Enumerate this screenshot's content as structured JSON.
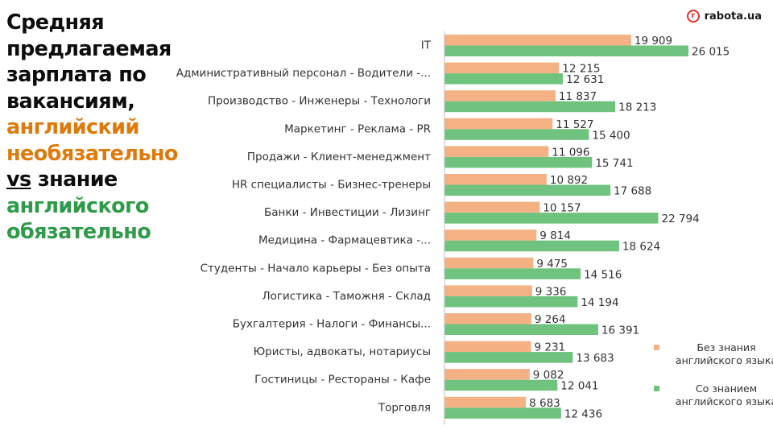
{
  "headline": {
    "line1": "Средняя",
    "line2": "предлагаемая",
    "line3": "зарплата по",
    "line4": "вакансиям,",
    "line5": "английский",
    "line6": "необязательно",
    "line7_prefix": "vs",
    "line7_rest": " знание",
    "line8": "английского",
    "line9": "обязательно"
  },
  "logo": {
    "text": "rabota.ua",
    "mark": "r"
  },
  "colors": {
    "orange": "#f4b183",
    "green": "#70c27f",
    "headline_dark": "#0d0d0d",
    "headline_orange": "#de7a0b",
    "headline_green": "#2f9b4a",
    "axis": "#bfbfbf",
    "logo_red": "#e2312c"
  },
  "legend": {
    "items": [
      {
        "label": "Без знания\nанглийского языка",
        "color": "#f4b183"
      },
      {
        "label": "Со знанием\nанглийского языка",
        "color": "#70c27f"
      }
    ]
  },
  "chart_data": {
    "type": "bar",
    "orientation": "horizontal",
    "title": "Средняя предлагаемая зарплата по вакансиям, английский необязательно vs знание английского обязательно",
    "xlabel": "",
    "ylabel": "",
    "xlim": [
      0,
      26015
    ],
    "grid": false,
    "legend_position": "bottom-right",
    "categories": [
      "IT",
      "Административный персонал - Водители -...",
      "Производство - Инженеры - Технологи",
      "Маркетинг - Реклама - PR",
      "Продажи - Клиент-менеджмент",
      "HR специалисты - Бизнес-тренеры",
      "Банки - Инвестиции - Лизинг",
      "Медицина - Фармацевтика -...",
      "Студенты - Начало карьеры - Без опыта",
      "Логистика - Таможня - Склад",
      "Бухгалтерия - Налоги - Финансы...",
      "Юристы, адвокаты, нотариусы",
      "Гостиницы - Рестораны - Кафе",
      "Торговля"
    ],
    "series": [
      {
        "name": "Без знания английского языка",
        "values": [
          19909,
          12215,
          11837,
          11527,
          11096,
          10892,
          10157,
          9814,
          9475,
          9336,
          9264,
          9231,
          9082,
          8683
        ],
        "labels": [
          "19 909",
          "12 215",
          "11 837",
          "11 527",
          "11 096",
          "10 892",
          "10 157",
          "9 814",
          "9 475",
          "9 336",
          "9 264",
          "9 231",
          "9 082",
          "8 683"
        ]
      },
      {
        "name": "Со знанием английского языка",
        "values": [
          26015,
          12631,
          18213,
          15400,
          15741,
          17688,
          22794,
          18624,
          14516,
          14194,
          16391,
          13683,
          12041,
          12436
        ],
        "labels": [
          "26 015",
          "12 631",
          "18 213",
          "15 400",
          "15 741",
          "17 688",
          "22 794",
          "18 624",
          "14 516",
          "14 194",
          "16 391",
          "13 683",
          "12 041",
          "12 436"
        ]
      }
    ]
  }
}
